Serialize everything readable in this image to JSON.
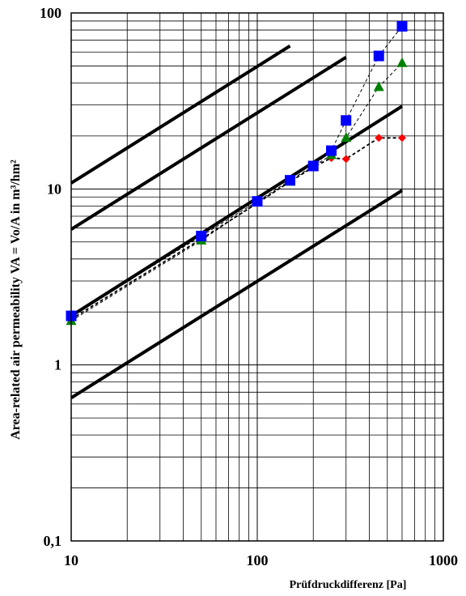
{
  "chart_data": {
    "type": "line",
    "title": "",
    "xlabel": "Prüfdruckdifferenz [Pa]",
    "ylabel": "Area-related  air permeability  VA = Vo/A in m³/hm²",
    "x_scale": "log",
    "y_scale": "log",
    "xlim": [
      10,
      1000
    ],
    "ylim": [
      0.1,
      100
    ],
    "x_ticks": [
      {
        "value": 10,
        "label": "10"
      },
      {
        "value": 100,
        "label": "100"
      },
      {
        "value": 1000,
        "label": "1000"
      }
    ],
    "y_ticks": [
      {
        "value": 0.1,
        "label": "0,1"
      },
      {
        "value": 1,
        "label": "1"
      },
      {
        "value": 10,
        "label": "10"
      },
      {
        "value": 100,
        "label": "100"
      }
    ],
    "grid": true,
    "legend": "none",
    "reference_lines": [
      {
        "x": [
          10,
          150
        ],
        "y": [
          10.8,
          65
        ]
      },
      {
        "x": [
          10,
          300
        ],
        "y": [
          5.9,
          56
        ]
      },
      {
        "x": [
          10,
          600
        ],
        "y": [
          1.9,
          29.5
        ]
      },
      {
        "x": [
          10,
          600
        ],
        "y": [
          0.65,
          9.8
        ]
      }
    ],
    "series": [
      {
        "marker": "diamond",
        "color": "#ff0000",
        "line": "#000000",
        "x": [
          10,
          50,
          100,
          150,
          200,
          250,
          300,
          450,
          600
        ],
        "y": [
          1.82,
          5.2,
          8.3,
          11.0,
          13.3,
          15.0,
          14.8,
          19.5,
          19.5
        ]
      },
      {
        "marker": "triangle",
        "color": "#008000",
        "line": "#000000",
        "x": [
          10,
          50,
          100,
          150,
          200,
          250,
          300,
          450,
          600
        ],
        "y": [
          1.78,
          5.1,
          8.4,
          11.0,
          13.4,
          15.6,
          19.5,
          38,
          52
        ]
      },
      {
        "marker": "square",
        "color": "#0000ff",
        "line": "#000000",
        "x": [
          10,
          50,
          100,
          150,
          200,
          250,
          300,
          450,
          600
        ],
        "y": [
          1.9,
          5.4,
          8.5,
          11.2,
          13.5,
          16.5,
          24.5,
          57,
          84
        ]
      }
    ]
  }
}
